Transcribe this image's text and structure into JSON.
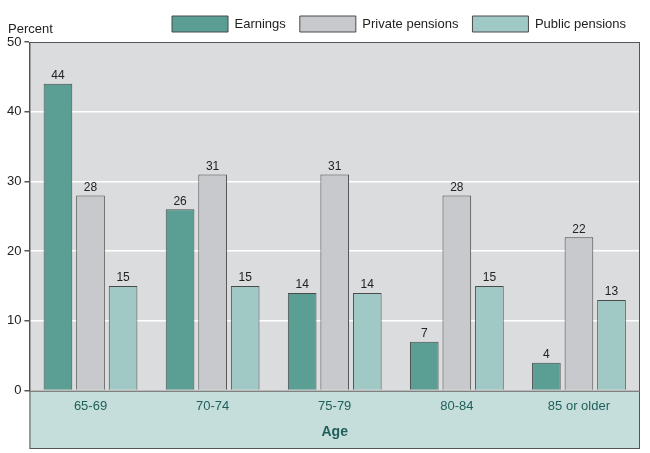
{
  "chart_data": {
    "type": "bar",
    "categories": [
      "65-69",
      "70-74",
      "75-79",
      "80-84",
      "85 or older"
    ],
    "series": [
      {
        "name": "Earnings",
        "color": "#5a9e94",
        "values": [
          44,
          26,
          14,
          7,
          4
        ]
      },
      {
        "name": "Private pensions",
        "color": "#c8c9cd",
        "values": [
          28,
          31,
          31,
          28,
          22
        ]
      },
      {
        "name": "Public pensions",
        "color": "#a0c8c4",
        "values": [
          15,
          15,
          14,
          15,
          13
        ]
      }
    ],
    "ylabel": "Percent",
    "xlabel": "Age",
    "ylim": [
      0,
      50
    ],
    "yticks": [
      0,
      10,
      20,
      30,
      40,
      50
    ],
    "grid": true,
    "legend": "top",
    "data_labels": true
  }
}
